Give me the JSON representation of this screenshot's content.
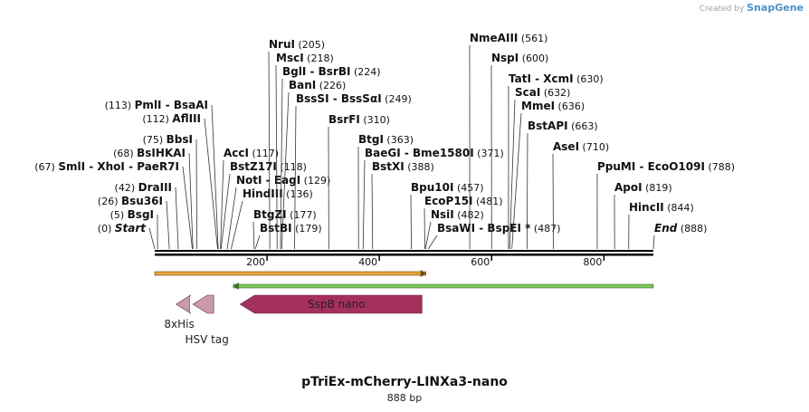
{
  "credit": {
    "prefix": "Created by",
    "brand": "SnapGene"
  },
  "title": "pTriEx-mCherry-LINXa3-nano",
  "subtitle": "888 bp",
  "map": {
    "length": 888,
    "ticks": [
      200,
      400,
      600,
      800
    ],
    "sites": [
      {
        "name": "Start",
        "pos": 0,
        "label": "(0)",
        "italic": true,
        "left": true
      },
      {
        "name": "BsgI",
        "pos": 5,
        "label": "(5)",
        "left": true
      },
      {
        "name": "Bsu36I",
        "pos": 26,
        "label": "(26)",
        "left": true
      },
      {
        "name": "DraIII",
        "pos": 42,
        "label": "(42)",
        "left": true
      },
      {
        "name": "SmlI - XhoI - PaeR7I",
        "pos": 67,
        "label": "(67)",
        "left": true
      },
      {
        "name": "BsIHKAI",
        "pos": 68,
        "label": "(68)",
        "left": true
      },
      {
        "name": "BbsI",
        "pos": 75,
        "label": "(75)",
        "left": true
      },
      {
        "name": "AflIII",
        "pos": 112,
        "label": "(112)",
        "left": true
      },
      {
        "name": "PmlI - BsaAI",
        "pos": 113,
        "label": "(113)",
        "left": true
      },
      {
        "name": "AccI",
        "pos": 117,
        "label": "(117)",
        "left": false
      },
      {
        "name": "BstZ17I",
        "pos": 118,
        "label": "(118)",
        "left": false
      },
      {
        "name": "NotI - EagI",
        "pos": 129,
        "label": "(129)",
        "left": false
      },
      {
        "name": "HindIII",
        "pos": 136,
        "label": "(136)",
        "left": false
      },
      {
        "name": "BtgZI",
        "pos": 177,
        "label": "(177)",
        "left": false
      },
      {
        "name": "BstBI",
        "pos": 179,
        "label": "(179)",
        "left": false
      },
      {
        "name": "NruI",
        "pos": 205,
        "label": "(205)",
        "left": false
      },
      {
        "name": "MscI",
        "pos": 218,
        "label": "(218)",
        "left": false
      },
      {
        "name": "BglI - BsrBI",
        "pos": 224,
        "label": "(224)",
        "left": false
      },
      {
        "name": "BanI",
        "pos": 226,
        "label": "(226)",
        "left": false
      },
      {
        "name": "BssSI - BssSαI",
        "pos": 249,
        "label": "(249)",
        "left": false
      },
      {
        "name": "BsrFI",
        "pos": 310,
        "label": "(310)",
        "left": false
      },
      {
        "name": "BtgI",
        "pos": 363,
        "label": "(363)",
        "left": false
      },
      {
        "name": "BaeGI - Bme1580I",
        "pos": 371,
        "label": "(371)",
        "left": false
      },
      {
        "name": "BstXI",
        "pos": 388,
        "label": "(388)",
        "left": false
      },
      {
        "name": "Bpu10I",
        "pos": 457,
        "label": "(457)",
        "left": false
      },
      {
        "name": "EcoP15I",
        "pos": 481,
        "label": "(481)",
        "left": false
      },
      {
        "name": "NsiI",
        "pos": 482,
        "label": "(482)",
        "left": false
      },
      {
        "name": "BsaWI - BspEI *",
        "pos": 487,
        "label": "(487)",
        "left": false
      },
      {
        "name": "NmeAIII",
        "pos": 561,
        "label": "(561)",
        "left": false
      },
      {
        "name": "NspI",
        "pos": 600,
        "label": "(600)",
        "left": false
      },
      {
        "name": "TatI - XcmI",
        "pos": 630,
        "label": "(630)",
        "left": false
      },
      {
        "name": "ScaI",
        "pos": 632,
        "label": "(632)",
        "left": false
      },
      {
        "name": "MmeI",
        "pos": 636,
        "label": "(636)",
        "left": false
      },
      {
        "name": "BstAPI",
        "pos": 663,
        "label": "(663)",
        "left": false
      },
      {
        "name": "AseI",
        "pos": 710,
        "label": "(710)",
        "left": false
      },
      {
        "name": "PpuMI - EcoO109I",
        "pos": 788,
        "label": "(788)",
        "left": false
      },
      {
        "name": "ApoI",
        "pos": 819,
        "label": "(819)",
        "left": false
      },
      {
        "name": "HincII",
        "pos": 844,
        "label": "(844)",
        "left": false
      },
      {
        "name": "End",
        "pos": 888,
        "label": "(888)",
        "italic": true,
        "left": false
      }
    ],
    "features": [
      {
        "name": "8xHis",
        "start": 38,
        "end": 62,
        "color": "#c99aae"
      },
      {
        "name": "HSV tag",
        "start": 68,
        "end": 105,
        "color": "#c99aae"
      },
      {
        "name": "SspB nano",
        "start": 152,
        "end": 476,
        "color": "#a5305e"
      }
    ],
    "orf_forward": {
      "start": 0,
      "end": 483,
      "color": "#e8a43a"
    },
    "orf_reverse": {
      "start": 140,
      "end": 888,
      "color": "#7cc85a"
    }
  }
}
